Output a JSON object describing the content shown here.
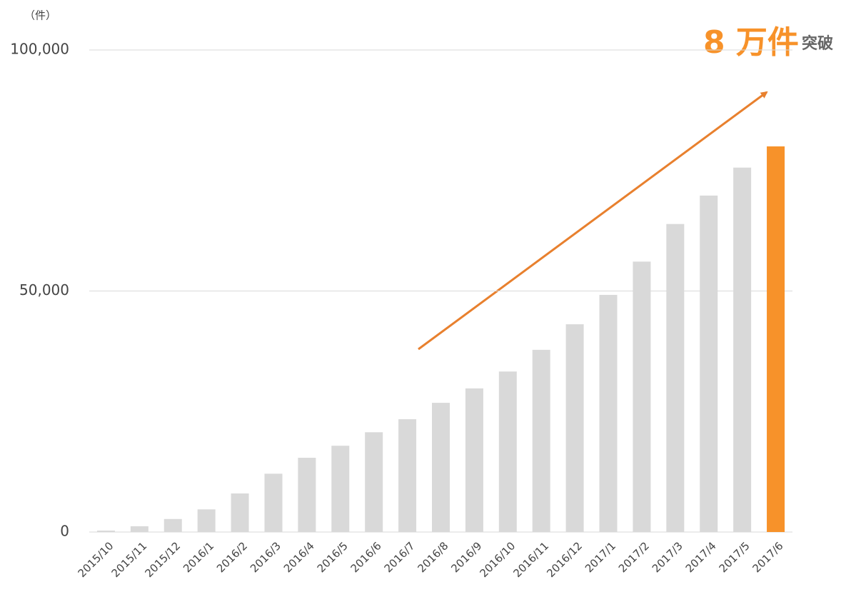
{
  "chart_data": {
    "type": "bar",
    "unit_label": "（件）",
    "annotation": {
      "main": "8 万件",
      "suffix": "突破"
    },
    "categories": [
      "2015/10",
      "2015/11",
      "2015/12",
      "2016/1",
      "2016/2",
      "2016/3",
      "2016/4",
      "2016/5",
      "2016/6",
      "2016/7",
      "2016/8",
      "2016/9",
      "2016/10",
      "2016/11",
      "2016/12",
      "2017/1",
      "2017/2",
      "2017/3",
      "2017/4",
      "2017/5",
      "2017/6"
    ],
    "values": [
      300,
      1200,
      2700,
      4700,
      8000,
      12100,
      15400,
      17900,
      20700,
      23400,
      26800,
      29800,
      33300,
      37800,
      43100,
      49200,
      56100,
      63900,
      69800,
      75600,
      80000
    ],
    "colors": [
      "#d9d9d9",
      "#d9d9d9",
      "#d9d9d9",
      "#d9d9d9",
      "#d9d9d9",
      "#d9d9d9",
      "#d9d9d9",
      "#d9d9d9",
      "#d9d9d9",
      "#d9d9d9",
      "#d9d9d9",
      "#d9d9d9",
      "#d9d9d9",
      "#d9d9d9",
      "#d9d9d9",
      "#d9d9d9",
      "#d9d9d9",
      "#d9d9d9",
      "#d9d9d9",
      "#d9d9d9",
      "#f7922a"
    ],
    "ylim": [
      0,
      100000
    ],
    "yticks": [
      0,
      {
        "value": 50000,
        "label": "50,000"
      },
      {
        "value": 100000,
        "label": "100,000"
      }
    ],
    "grid": true
  }
}
